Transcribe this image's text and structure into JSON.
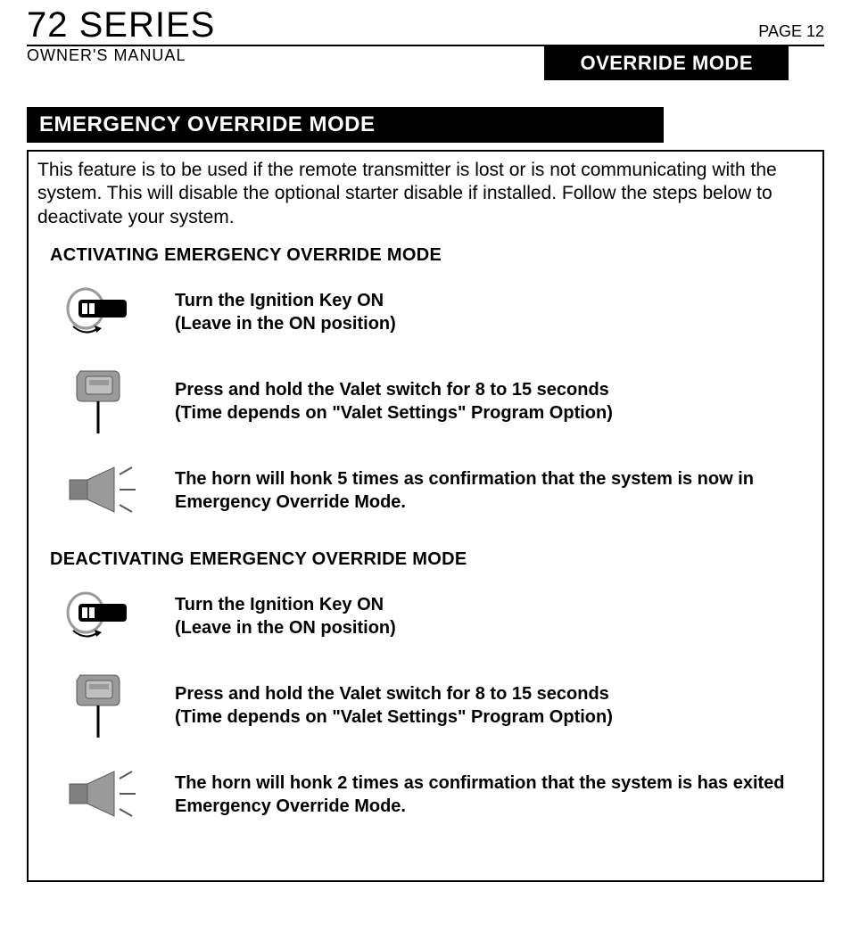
{
  "header": {
    "series_title": "72 SERIES",
    "page_label": "PAGE 12",
    "manual_label": "OWNER'S  MANUAL",
    "mode_badge": "OVERRIDE MODE"
  },
  "section": {
    "title_bar": "EMERGENCY OVERRIDE MODE",
    "intro": "This feature is to be used if the remote transmitter is lost or is not communicating with the system. This will disable the optional starter disable if installed. Follow the steps below to deactivate your system.",
    "activating": {
      "heading": "ACTIVATING EMERGENCY OVERRIDE MODE",
      "steps": [
        " Turn the Ignition Key ON\n(Leave in the ON position)",
        "Press and hold the Valet switch for 8 to 15 seconds\n(Time depends on \"Valet Settings\" Program Option)",
        "The horn will honk 5 times as confirmation that the system is now in Emergency Override Mode."
      ]
    },
    "deactivating": {
      "heading": "DEACTIVATING EMERGENCY OVERRIDE MODE",
      "steps": [
        " Turn the Ignition Key ON\n(Leave in the ON position)",
        "Press and hold the Valet switch for 8 to 15 seconds\n(Time depends on \"Valet Settings\" Program Option)",
        "The horn will honk 2 times as confirmation that the system is has exited Emergency Override Mode."
      ]
    }
  },
  "colors": {
    "bg": "#ffffff",
    "text": "#000000",
    "bar_bg": "#000000",
    "bar_text": "#ffffff",
    "icon_gray": "#9a9a9a",
    "icon_dark": "#595959"
  }
}
